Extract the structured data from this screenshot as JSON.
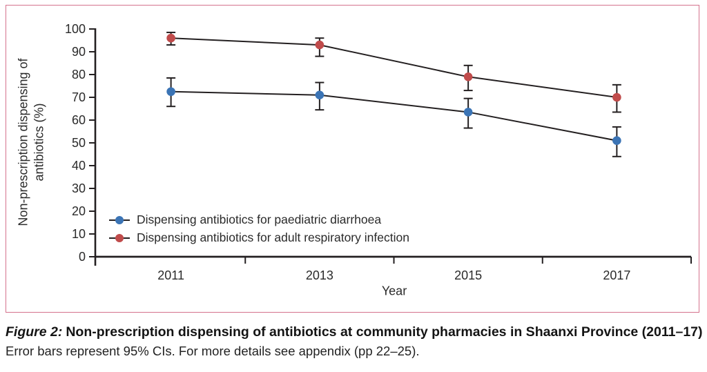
{
  "figure": {
    "border_color": "#d4718c",
    "caption_label": "Figure 2:",
    "caption_title": "Non-prescription dispensing of antibiotics at community pharmacies in Shaanxi Province (2011–17)",
    "caption_note": "Error bars represent 95% CIs. For more details see appendix (pp 22–25)."
  },
  "chart_data": {
    "type": "line",
    "title": "",
    "xlabel": "Year",
    "ylabel": "Non-prescription dispensing of\nantibiotics (%)",
    "categories": [
      "2011",
      "2013",
      "2015",
      "2017"
    ],
    "yticks": [
      0,
      10,
      20,
      30,
      40,
      50,
      60,
      70,
      80,
      90,
      100
    ],
    "ylim": [
      0,
      100
    ],
    "grid": false,
    "legend_position": "inside-lower-left",
    "error_bars": "95% CI",
    "line_color": "#231f20",
    "series": [
      {
        "name": "Dispensing antibiotics for paediatric diarrhoea",
        "color": "#3B74B5",
        "values": [
          72.5,
          71,
          63.5,
          51
        ],
        "ci_low": [
          66,
          64.5,
          56.5,
          44
        ],
        "ci_high": [
          78.5,
          76.5,
          69.5,
          57
        ]
      },
      {
        "name": "Dispensing antibiotics for adult respiratory infection",
        "color": "#C04B4B",
        "values": [
          96,
          93,
          79,
          70
        ],
        "ci_low": [
          93,
          88,
          73,
          63.5
        ],
        "ci_high": [
          98.5,
          96,
          84,
          75.5
        ]
      }
    ]
  }
}
